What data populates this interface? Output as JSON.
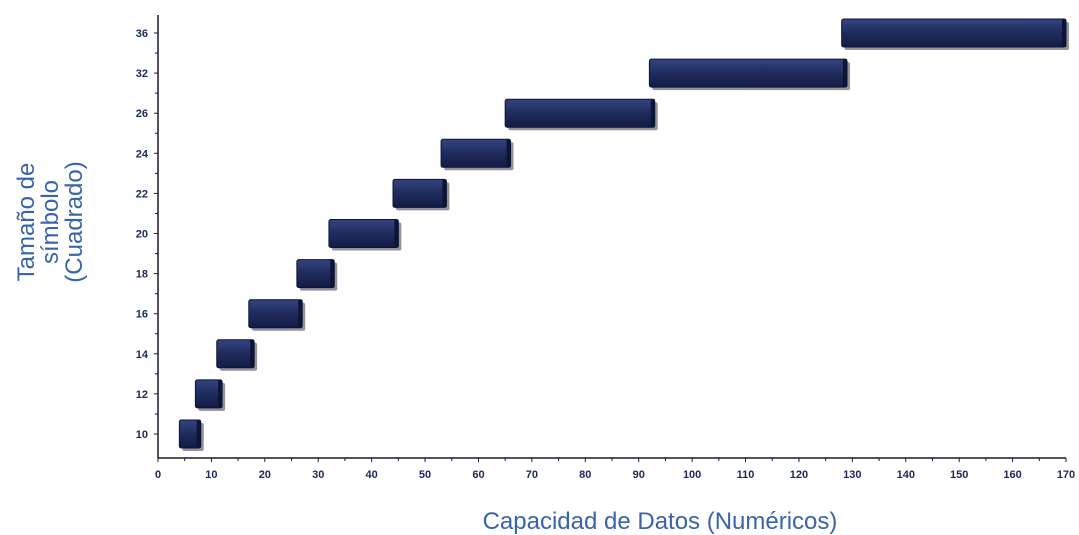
{
  "chart_data": {
    "type": "bar",
    "orientation": "horizontal-range",
    "xlabel": "Capacidad de Datos (Numéricos)",
    "ylabel_lines": [
      "Tamaño de",
      "símbolo",
      "(Cuadrado)"
    ],
    "xlim": [
      0,
      170
    ],
    "x_ticks": [
      "0",
      "10",
      "20",
      "30",
      "40",
      "50",
      "60",
      "70",
      "80",
      "90",
      "100",
      "110",
      "120",
      "130",
      "140",
      "150",
      "160",
      "170"
    ],
    "y_ticks": [
      "10",
      "12",
      "14",
      "16",
      "18",
      "20",
      "22",
      "24",
      "26",
      "32",
      "36"
    ],
    "series": [
      {
        "bar_color": "#1f2b5e",
        "ranges": [
          {
            "category": "10",
            "start": 4,
            "end": 8
          },
          {
            "category": "12",
            "start": 7,
            "end": 12
          },
          {
            "category": "14",
            "start": 11,
            "end": 18
          },
          {
            "category": "16",
            "start": 17,
            "end": 27
          },
          {
            "category": "18",
            "start": 26,
            "end": 33
          },
          {
            "category": "20",
            "start": 32,
            "end": 45
          },
          {
            "category": "22",
            "start": 44,
            "end": 54
          },
          {
            "category": "24",
            "start": 53,
            "end": 66
          },
          {
            "category": "26",
            "start": 65,
            "end": 93
          },
          {
            "category": "32",
            "start": 92,
            "end": 129
          },
          {
            "category": "36",
            "start": 128,
            "end": 171
          }
        ]
      }
    ],
    "grid": false,
    "legend": "none"
  }
}
